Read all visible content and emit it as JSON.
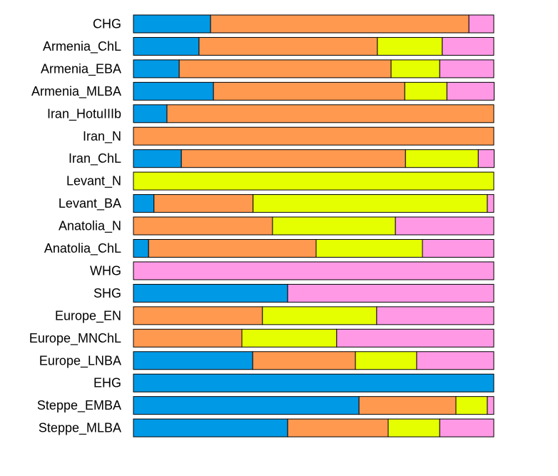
{
  "chart_data": {
    "type": "bar",
    "orientation": "horizontal",
    "stacked": true,
    "normalized": true,
    "xlim": [
      0,
      1
    ],
    "grid": false,
    "legend": "none",
    "categories": [
      "CHG",
      "Armenia_ChL",
      "Armenia_EBA",
      "Armenia_MLBA",
      "Iran_HotuIIIb",
      "Iran_N",
      "Iran_ChL",
      "Levant_N",
      "Levant_BA",
      "Anatolia_N",
      "Anatolia_ChL",
      "WHG",
      "SHG",
      "Europe_EN",
      "Europe_MNChL",
      "Europe_LNBA",
      "EHG",
      "Steppe_EMBA",
      "Steppe_MLBA"
    ],
    "series": [
      {
        "color": "#0099e6",
        "values": [
          0.214,
          0.182,
          0.127,
          0.222,
          0.093,
          0,
          0.133,
          0,
          0.057,
          0,
          0.042,
          0,
          0.428,
          0,
          0,
          0.331,
          1,
          0.626,
          0.428
        ]
      },
      {
        "color": "#ff9950",
        "values": [
          0.717,
          0.495,
          0.588,
          0.531,
          0.907,
          1,
          0.622,
          0,
          0.275,
          0.386,
          0.465,
          0,
          0,
          0.358,
          0.301,
          0.285,
          0,
          0.269,
          0.279
        ]
      },
      {
        "color": "#e6ff00",
        "values": [
          0,
          0.18,
          0.135,
          0.117,
          0,
          0,
          0.202,
          1,
          0.65,
          0.341,
          0.295,
          0,
          0,
          0.317,
          0.263,
          0.17,
          0,
          0.087,
          0.143
        ]
      },
      {
        "color": "#ff99e6",
        "values": [
          0.069,
          0.143,
          0.15,
          0.131,
          0,
          0,
          0.044,
          0,
          0.018,
          0.273,
          0.198,
          1,
          0.572,
          0.325,
          0.436,
          0.214,
          0,
          0.018,
          0.15
        ]
      }
    ]
  }
}
